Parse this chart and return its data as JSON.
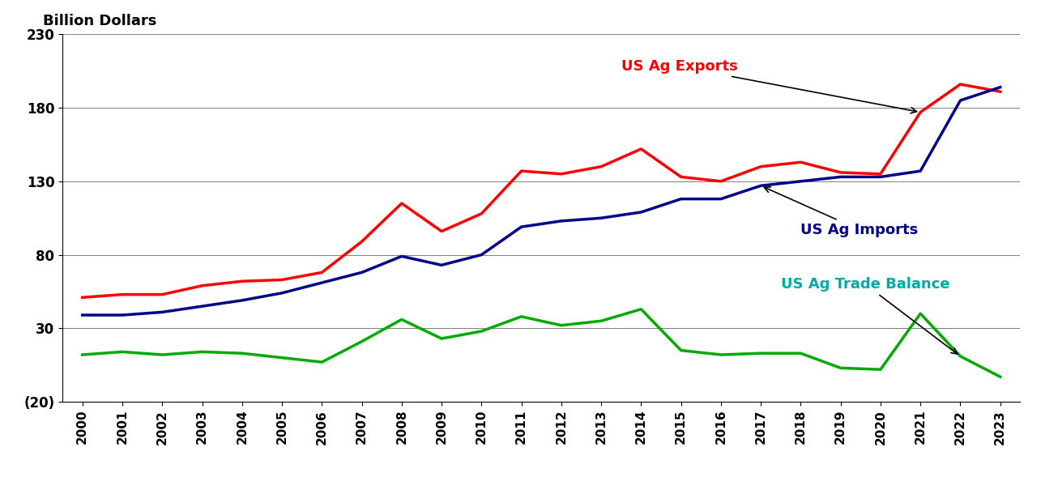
{
  "years": [
    2000,
    2001,
    2002,
    2003,
    2004,
    2005,
    2006,
    2007,
    2008,
    2009,
    2010,
    2011,
    2012,
    2013,
    2014,
    2015,
    2016,
    2017,
    2018,
    2019,
    2020,
    2021,
    2022,
    2023
  ],
  "exports": [
    51,
    53,
    53,
    59,
    62,
    63,
    68,
    89,
    115,
    96,
    108,
    137,
    135,
    140,
    152,
    133,
    130,
    140,
    143,
    136,
    135,
    177,
    196,
    191
  ],
  "imports": [
    39,
    39,
    41,
    45,
    49,
    54,
    61,
    68,
    79,
    73,
    80,
    99,
    103,
    105,
    109,
    118,
    118,
    127,
    130,
    133,
    133,
    137,
    185,
    194
  ],
  "trade_balance": [
    12,
    14,
    12,
    14,
    13,
    10,
    7,
    21,
    36,
    23,
    28,
    38,
    32,
    35,
    43,
    15,
    12,
    13,
    13,
    3,
    2,
    40,
    11,
    -3
  ],
  "export_color": "#FF0000",
  "import_color": "#00008B",
  "balance_color": "#00AA00",
  "balance_label_color": "#00AAAA",
  "title": "Billion Dollars",
  "yticks": [
    -20,
    30,
    80,
    130,
    180,
    230
  ],
  "ytick_labels": [
    "(20)",
    "30",
    "80",
    "130",
    "180",
    "230"
  ],
  "ylim": [
    -20,
    230
  ],
  "annotation_exports_text": "US Ag Exports",
  "annotation_imports_text": "US Ag Imports",
  "annotation_balance_text": "US Ag Trade Balance",
  "line_width": 2.5
}
